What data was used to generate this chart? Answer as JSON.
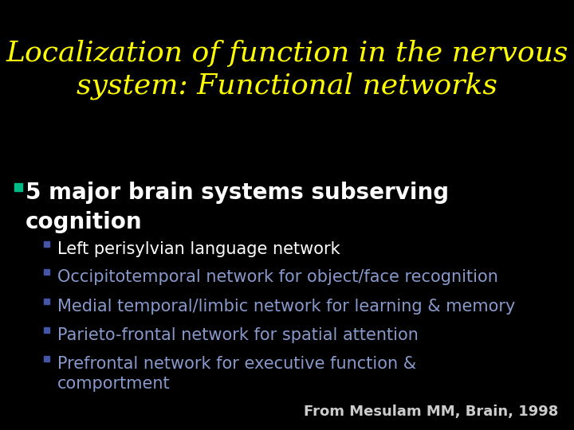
{
  "background_color": "#000000",
  "title_line1": "Localization of function in the nervous",
  "title_line2": "system: Functional networks",
  "title_color": "#FFFF00",
  "title_fontsize": 26,
  "title_font": "DejaVu Serif",
  "title_style": "italic",
  "bullet1_marker_color": "#00BB88",
  "bullet1_text_line1": "5 major brain systems subserving",
  "bullet1_text_line2": "cognition",
  "bullet1_color": "#FFFFFF",
  "bullet1_fontsize": 20,
  "subbullets": [
    "Left perisylvian language network",
    "Occipitotemporal network for object/face recognition",
    "Medial temporal/limbic network for learning & memory",
    "Parieto-frontal network for spatial attention",
    "Prefrontal network for executive function &\ncomportment"
  ],
  "subbullet_colors": [
    "#FFFFFF",
    "#8899CC",
    "#8899CC",
    "#8899CC",
    "#8899CC"
  ],
  "subbullet_marker_color": "#4455AA",
  "subbullet_fontsize": 15,
  "citation": "From Mesulam MM, Brain, 1998",
  "citation_color": "#CCCCCC",
  "citation_fontsize": 13
}
